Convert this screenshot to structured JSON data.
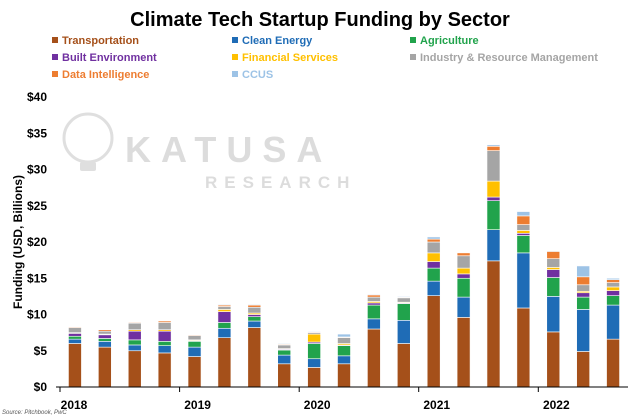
{
  "chart_data": {
    "type": "bar",
    "stacked": true,
    "title": "Climate Tech Startup Funding by Sector",
    "ylabel": "Funding (USD, Billions)",
    "xlabel": "",
    "ylim": [
      0,
      40
    ],
    "yticks": [
      "$0",
      "$5",
      "$10",
      "$15",
      "$20",
      "$25",
      "$30",
      "$35",
      "$40"
    ],
    "year_labels": [
      "2018",
      "2019",
      "2020",
      "2021",
      "2022"
    ],
    "source": "Source: Pitchbook, PwC",
    "legend_position": "top",
    "grid": false,
    "watermark": {
      "brand": "KATUSA",
      "sub": "RESEARCH"
    },
    "series": [
      {
        "name": "Transportation",
        "color": "#a5501a",
        "values": [
          6.0,
          5.5,
          5.0,
          4.7,
          4.2,
          6.8,
          8.2,
          3.2,
          2.7,
          3.2,
          8.0,
          6.0,
          12.6,
          9.6,
          17.4,
          10.9,
          7.6,
          4.9,
          6.6
        ]
      },
      {
        "name": "Clean Energy",
        "color": "#1f6cb6",
        "values": [
          0.6,
          0.8,
          0.8,
          1.0,
          1.3,
          1.3,
          0.9,
          1.2,
          1.2,
          1.1,
          1.4,
          3.2,
          2.0,
          2.8,
          4.3,
          7.6,
          4.9,
          5.8,
          4.7
        ]
      },
      {
        "name": "Agriculture",
        "color": "#21a34c",
        "values": [
          0.4,
          0.4,
          0.7,
          0.6,
          0.8,
          0.8,
          0.6,
          0.7,
          2.1,
          1.4,
          1.9,
          2.3,
          1.8,
          2.6,
          4.0,
          2.4,
          2.6,
          1.7,
          1.3
        ]
      },
      {
        "name": "Built Environment",
        "color": "#7030a0",
        "values": [
          0.4,
          0.5,
          1.2,
          1.4,
          0.1,
          1.5,
          0.3,
          0.1,
          0.2,
          0.1,
          0.3,
          0.1,
          0.9,
          0.6,
          0.5,
          0.3,
          1.1,
          0.6,
          0.7
        ]
      },
      {
        "name": "Financial Services",
        "color": "#ffc000",
        "values": [
          0.1,
          0.1,
          0.2,
          0.2,
          0.1,
          0.3,
          0.2,
          0.1,
          1.1,
          0.2,
          0.2,
          0.1,
          1.2,
          0.8,
          2.2,
          0.4,
          0.3,
          0.2,
          0.5
        ]
      },
      {
        "name": "Industry & Resource Management",
        "color": "#a5a5a5",
        "values": [
          0.7,
          0.4,
          0.9,
          1.0,
          0.6,
          0.4,
          0.8,
          0.5,
          0.2,
          0.8,
          0.6,
          0.6,
          1.5,
          1.7,
          4.2,
          0.8,
          1.2,
          0.9,
          0.6
        ]
      },
      {
        "name": "Data Intelligence",
        "color": "#ed7d31",
        "values": [
          0.1,
          0.2,
          0.1,
          0.2,
          0.1,
          0.2,
          0.3,
          0.1,
          0.1,
          0.1,
          0.3,
          0.1,
          0.4,
          0.4,
          0.6,
          1.2,
          1.0,
          1.1,
          0.4
        ]
      },
      {
        "name": "CCUS",
        "color": "#9dc3e6",
        "values": [
          0.0,
          0.0,
          0.0,
          0.0,
          0.0,
          0.1,
          0.1,
          0.1,
          0.1,
          0.4,
          0.1,
          0.1,
          0.3,
          0.0,
          0.2,
          0.6,
          0.1,
          1.5,
          0.2
        ]
      }
    ]
  }
}
